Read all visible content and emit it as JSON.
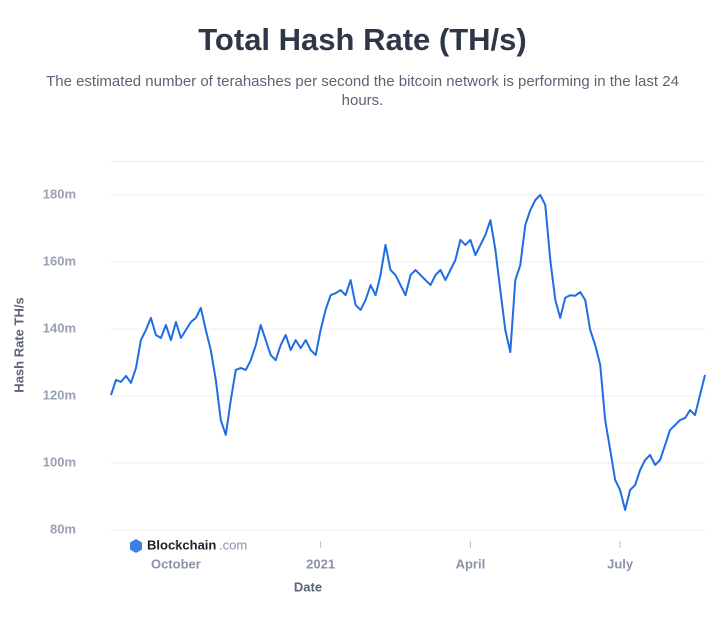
{
  "chart_data": {
    "type": "line",
    "title": "Total Hash Rate (TH/s)",
    "subtitle": "The estimated number of terahashes per second the bitcoin network is performing in the last 24 hours.",
    "x_label": "Date",
    "y_label": "Hash Rate TH/s",
    "watermark": {
      "brand": "Blockchain",
      "domain": ".com"
    },
    "categories": [
      null,
      null,
      null,
      null,
      null,
      null,
      null,
      null,
      null,
      null,
      null,
      null,
      null,
      "October",
      null,
      null,
      null,
      null,
      null,
      null,
      null,
      null,
      null,
      null,
      null,
      null,
      null,
      null,
      null,
      null,
      null,
      null,
      null,
      null,
      null,
      null,
      null,
      null,
      null,
      null,
      null,
      null,
      "2021",
      null,
      null,
      null,
      null,
      null,
      null,
      null,
      null,
      null,
      null,
      null,
      null,
      null,
      null,
      null,
      null,
      null,
      null,
      null,
      null,
      null,
      null,
      null,
      null,
      null,
      null,
      null,
      null,
      null,
      "April",
      null,
      null,
      null,
      null,
      null,
      null,
      null,
      null,
      null,
      null,
      null,
      null,
      null,
      null,
      null,
      null,
      null,
      null,
      null,
      null,
      null,
      null,
      null,
      null,
      null,
      null,
      null,
      null,
      null,
      "July",
      null,
      null,
      null,
      null,
      null,
      null,
      null,
      null,
      null,
      null,
      null,
      null,
      null,
      null,
      null,
      null,
      null
    ],
    "series": [
      {
        "name": "Hash Rate",
        "color": "#1f6ee0",
        "values": [
          120.3,
          124.8,
          124.2,
          126.0,
          123.9,
          128.4,
          136.7,
          139.7,
          143.3,
          138.2,
          137.3,
          141.2,
          136.7,
          142.1,
          137.3,
          139.7,
          142.1,
          143.3,
          146.3,
          139.7,
          133.7,
          124.8,
          112.8,
          108.4,
          118.8,
          127.8,
          128.4,
          127.8,
          130.7,
          135.2,
          141.2,
          136.7,
          132.2,
          130.7,
          135.2,
          138.2,
          133.7,
          136.7,
          134.3,
          136.7,
          133.7,
          132.2,
          139.7,
          145.7,
          150.1,
          150.7,
          151.6,
          150.1,
          154.6,
          147.2,
          145.7,
          148.7,
          153.1,
          150.1,
          156.1,
          165.1,
          157.6,
          156.1,
          153.1,
          150.1,
          156.1,
          157.6,
          156.1,
          154.6,
          153.1,
          156.1,
          157.6,
          154.6,
          157.6,
          160.6,
          166.6,
          165.1,
          166.6,
          162.1,
          165.1,
          168.1,
          172.5,
          163.6,
          151.6,
          139.7,
          133.1,
          154.6,
          159.1,
          171.0,
          175.5,
          178.5,
          180.0,
          177.0,
          160.6,
          148.7,
          143.3,
          149.3,
          150.1,
          149.9,
          151.0,
          148.7,
          139.7,
          135.2,
          129.3,
          112.8,
          103.9,
          94.9,
          91.9,
          86.0,
          91.9,
          93.4,
          97.9,
          100.9,
          102.4,
          99.4,
          100.9,
          105.4,
          109.9,
          111.3,
          112.8,
          113.4,
          115.8,
          114.3,
          120.3,
          126.3
        ]
      }
    ],
    "ylim": [
      80,
      190
    ],
    "yticks": [
      {
        "value": 80,
        "label": "80m"
      },
      {
        "value": 100,
        "label": "100m"
      },
      {
        "value": 120,
        "label": "120m"
      },
      {
        "value": 140,
        "label": "140m"
      },
      {
        "value": 160,
        "label": "160m"
      },
      {
        "value": 180,
        "label": "180m"
      }
    ],
    "grid": true
  }
}
